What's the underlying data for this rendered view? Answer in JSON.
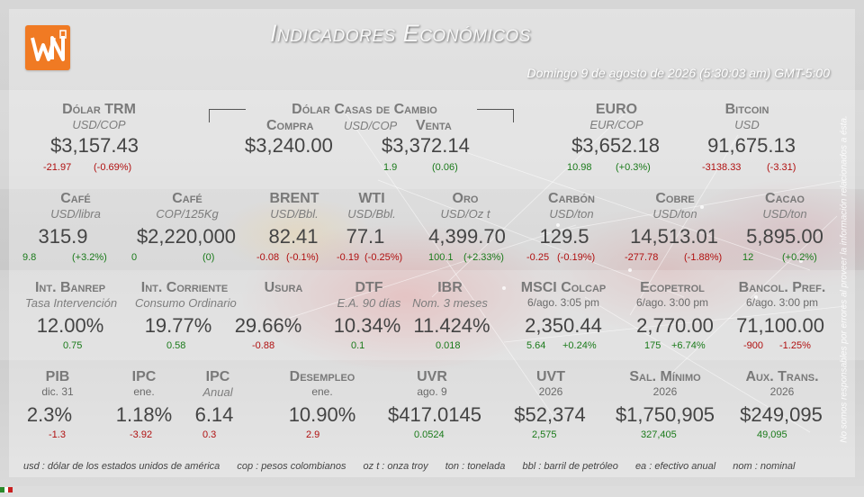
{
  "header": {
    "title": "Indicadores Económicos",
    "datetime": "Domingo 9 de agosto de 2026 (5:30:03 am) GMT-5:00",
    "disclaimer": "No somos responsables por errores al proveer la información relacionados a ésta."
  },
  "colors": {
    "negative": "#b01010",
    "positive": "#1a7a1a",
    "logo": "#f07a23"
  },
  "row1": {
    "trm": {
      "name": "Dólar TRM",
      "unit": "USD/COP",
      "value": "$3,157.43",
      "chg": "-21.97",
      "pct": "(-0.69%)"
    },
    "casas": {
      "name": "Dólar Casas de Cambio",
      "compra_label": "Compra",
      "unit": "USD/COP",
      "venta_label": "Venta",
      "compra_value": "$3,240.00",
      "venta_value": "$3,372.14",
      "chg": "1.9",
      "pct": "(0.06)"
    },
    "euro": {
      "name": "EURO",
      "unit": "EUR/COP",
      "value": "$3,652.18",
      "chg": "10.98",
      "pct": "(+0.3%)"
    },
    "bitcoin": {
      "name": "Bitcoin",
      "unit": "USD",
      "value": "91,675.13",
      "chg": "-3138.33",
      "pct": "(-3.31)"
    }
  },
  "row2": [
    {
      "name": "Café",
      "unit": "USD/libra",
      "value": "315.9",
      "chg": "9.8",
      "pct": "(+3.2%)"
    },
    {
      "name": "Café",
      "unit": "COP/125Kg",
      "value": "$2,220,000",
      "chg": "0",
      "pct": "(0)"
    },
    {
      "name": "BRENT",
      "unit": "USD/Bbl.",
      "value": "82.41",
      "chg": "-0.08",
      "pct": "(-0.1%)"
    },
    {
      "name": "WTI",
      "unit": "USD/Bbl.",
      "value": "77.1",
      "chg": "-0.19",
      "pct": "(-0.25%)"
    },
    {
      "name": "Oro",
      "unit": "USD/Oz t",
      "value": "4,399.70",
      "chg": "100.1",
      "pct": "(+2.33%)"
    },
    {
      "name": "Carbón",
      "unit": "USD/ton",
      "value": "129.5",
      "chg": "-0.25",
      "pct": "(-0.19%)"
    },
    {
      "name": "Cobre",
      "unit": "USD/ton",
      "value": "14,513.01",
      "chg": "-277.78",
      "pct": "(-1.88%)"
    },
    {
      "name": "Cacao",
      "unit": "USD/ton",
      "value": "5,895.00",
      "chg": "12",
      "pct": "(+0.2%)"
    }
  ],
  "row3": [
    {
      "name": "Int. Banrep",
      "unit": "Tasa Intervención",
      "value": "12.00%",
      "chg": "0.75"
    },
    {
      "name": "Int. Corriente",
      "unit": "Consumo Ordinario",
      "value": "19.77%",
      "chg": "0.58"
    },
    {
      "name": "Usura",
      "unit": "",
      "value": "29.66%",
      "chg": "-0.88"
    },
    {
      "name": "DTF",
      "unit": "E.A. 90 días",
      "value": "10.34%",
      "chg": "0.1"
    },
    {
      "name": "IBR",
      "unit": "Nom. 3 meses",
      "value": "11.424%",
      "chg": "0.018"
    },
    {
      "name": "MSCI Colcap",
      "unit": "6/ago. 3:05 pm",
      "value": "2,350.44",
      "chg": "5.64",
      "pct": "+0.24%"
    },
    {
      "name": "Ecopetrol",
      "unit": "6/ago. 3:00 pm",
      "value": "2,770.00",
      "chg": "175",
      "pct": "+6.74%"
    },
    {
      "name": "Bancol. Pref.",
      "unit": "6/ago. 3:00 pm",
      "value": "71,100.00",
      "chg": "-900",
      "pct": "-1.25%"
    }
  ],
  "row4": [
    {
      "name": "PIB",
      "unit": "dic. 31",
      "value": "2.3%",
      "chg": "-1.3"
    },
    {
      "name": "IPC",
      "unit": "ene.",
      "value": "1.18%",
      "chg": "-3.92"
    },
    {
      "name": "IPC",
      "unit": "Anual",
      "value": "6.14",
      "chg": "0.3"
    },
    {
      "name": "Desempleo",
      "unit": "ene.",
      "value": "10.90%",
      "chg": "2.9"
    },
    {
      "name": "UVR",
      "unit": "ago. 9",
      "value": "$417.0145",
      "chg": "0.0524"
    },
    {
      "name": "UVT",
      "unit": "2026",
      "value": "$52,374",
      "chg": "2,575"
    },
    {
      "name": "Sal. Mínimo",
      "unit": "2026",
      "value": "$1,750,905",
      "chg": "327,405"
    },
    {
      "name": "Aux. Trans.",
      "unit": "2026",
      "value": "$249,095",
      "chg": "49,095"
    }
  ],
  "footer": [
    "usd : dólar de los estados unidos de américa",
    "cop : pesos colombianos",
    "oz t : onza troy",
    "ton : tonelada",
    "bbl : barril de petróleo",
    "ea : efectivo anual",
    "nom : nominal"
  ],
  "icons": {
    "logo": "wn-logo-icon",
    "flag": "flag-icon"
  }
}
